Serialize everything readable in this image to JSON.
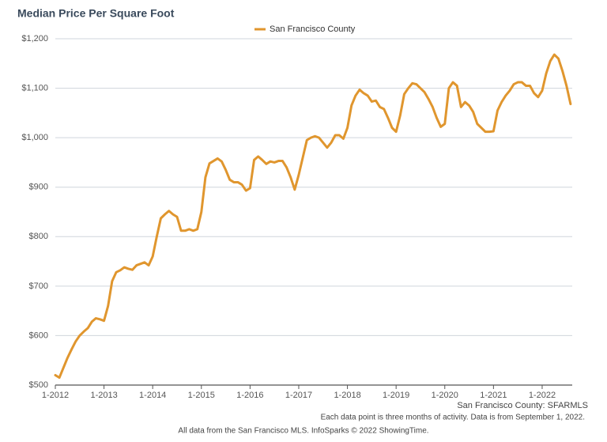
{
  "chart_data": {
    "type": "line",
    "title": "Median Price Per Square Foot",
    "source": "San Francisco County: SFARMLS",
    "note": "Each data point is three months of activity. Data is from September 1, 2022.",
    "footer": "All data from the San Francisco MLS. InfoSparks © 2022 ShowingTime.",
    "legend": "top",
    "grid": true,
    "categories": [
      "1-2012",
      null,
      null,
      null,
      null,
      null,
      null,
      null,
      null,
      null,
      null,
      null,
      "1-2013",
      null,
      null,
      null,
      null,
      null,
      null,
      null,
      null,
      null,
      null,
      null,
      "1-2014",
      null,
      null,
      null,
      null,
      null,
      null,
      null,
      null,
      null,
      null,
      null,
      "1-2015",
      null,
      null,
      null,
      null,
      null,
      null,
      null,
      null,
      null,
      null,
      null,
      "1-2016",
      null,
      null,
      null,
      null,
      null,
      null,
      null,
      null,
      null,
      null,
      null,
      "1-2017",
      null,
      null,
      null,
      null,
      null,
      null,
      null,
      null,
      null,
      null,
      null,
      "1-2018",
      null,
      null,
      null,
      null,
      null,
      null,
      null,
      null,
      null,
      null,
      null,
      "1-2019",
      null,
      null,
      null,
      null,
      null,
      null,
      null,
      null,
      null,
      null,
      null,
      "1-2020",
      null,
      null,
      null,
      null,
      null,
      null,
      null,
      null,
      null,
      null,
      null,
      "1-2021",
      null,
      null,
      null,
      null,
      null,
      null,
      null,
      null,
      null,
      null,
      null,
      "1-2022",
      null,
      null,
      null,
      null,
      null,
      null,
      null
    ],
    "series": [
      {
        "name": "San Francisco County",
        "color": "#e0962e",
        "values": [
          520,
          515,
          535,
          555,
          572,
          588,
          600,
          608,
          615,
          628,
          635,
          633,
          630,
          660,
          710,
          728,
          732,
          738,
          735,
          733,
          742,
          745,
          748,
          742,
          760,
          800,
          837,
          845,
          852,
          845,
          840,
          812,
          812,
          815,
          812,
          815,
          850,
          920,
          948,
          953,
          958,
          952,
          935,
          915,
          910,
          910,
          905,
          893,
          898,
          955,
          962,
          955,
          947,
          952,
          950,
          953,
          953,
          940,
          920,
          895,
          925,
          960,
          995,
          1000,
          1003,
          1000,
          990,
          980,
          990,
          1005,
          1005,
          998,
          1020,
          1065,
          1085,
          1097,
          1090,
          1085,
          1073,
          1075,
          1062,
          1058,
          1040,
          1020,
          1012,
          1045,
          1088,
          1100,
          1110,
          1108,
          1100,
          1092,
          1078,
          1062,
          1040,
          1022,
          1028,
          1100,
          1112,
          1105,
          1062,
          1072,
          1065,
          1052,
          1028,
          1020,
          1012,
          1012,
          1013,
          1055,
          1072,
          1085,
          1095,
          1108,
          1112,
          1112,
          1105,
          1105,
          1090,
          1082,
          1095,
          1130,
          1155,
          1168,
          1160,
          1135,
          1105,
          1068
        ]
      }
    ],
    "ylim": [
      500,
      1200
    ],
    "yticks": [
      {
        "value": 500,
        "label": "$500"
      },
      {
        "value": 600,
        "label": "$600"
      },
      {
        "value": 700,
        "label": "$700"
      },
      {
        "value": 800,
        "label": "$800"
      },
      {
        "value": 900,
        "label": "$900"
      },
      {
        "value": 1000,
        "label": "$1,000"
      },
      {
        "value": 1100,
        "label": "$1,100"
      },
      {
        "value": 1200,
        "label": "$1,200"
      }
    ]
  }
}
